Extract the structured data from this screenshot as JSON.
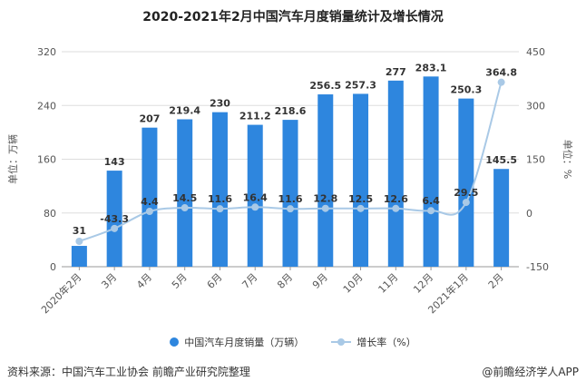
{
  "chart_data": {
    "type": "bar+line",
    "title": "2020-2021年2月中国汽车月度销量统计及增长情况",
    "categories": [
      "2020年2月",
      "3月",
      "4月",
      "5月",
      "6月",
      "7月",
      "8月",
      "9月",
      "10月",
      "11月",
      "12月",
      "2021年1月",
      "2月"
    ],
    "series": [
      {
        "name": "中国汽车月度销量（万辆）",
        "type": "bar",
        "axis": "left",
        "color": "#2e86de",
        "values": [
          31,
          143,
          207,
          219.4,
          230,
          211.2,
          218.6,
          256.5,
          257.3,
          277,
          283.1,
          250.3,
          145.5
        ],
        "labels": [
          "31",
          "143",
          "207",
          "219.4",
          "230",
          "211.2",
          "218.6",
          "256.5",
          "257.3",
          "277",
          "283.1",
          "250.3",
          "145.5"
        ]
      },
      {
        "name": "增长率（%）",
        "type": "line",
        "axis": "right",
        "color": "#a9c9e6",
        "values": [
          -79.1,
          -43.3,
          4.4,
          14.5,
          11.6,
          16.4,
          11.6,
          12.8,
          12.5,
          12.6,
          6.4,
          29.5,
          364.8
        ],
        "labels": [
          "",
          "-43.3",
          "4.4",
          "14.5",
          "11.6",
          "16.4",
          "11.6",
          "12.8",
          "12.5",
          "12.6",
          "6.4",
          "29.5",
          "364.8"
        ]
      }
    ],
    "ylabel_left": "单位：万辆",
    "ylabel_right": "单位：%",
    "ylim_left": [
      0,
      320
    ],
    "yticks_left": [
      "0",
      "80",
      "160",
      "240",
      "320"
    ],
    "ylim_right": [
      -150,
      450
    ],
    "yticks_right": [
      "-150",
      "0",
      "150",
      "300",
      "450"
    ],
    "grid": true,
    "legend": "bottom"
  },
  "footer": {
    "source": "资料来源：中国汽车工业协会 前瞻产业研究院整理",
    "brand": "@前瞻经济学人APP"
  }
}
